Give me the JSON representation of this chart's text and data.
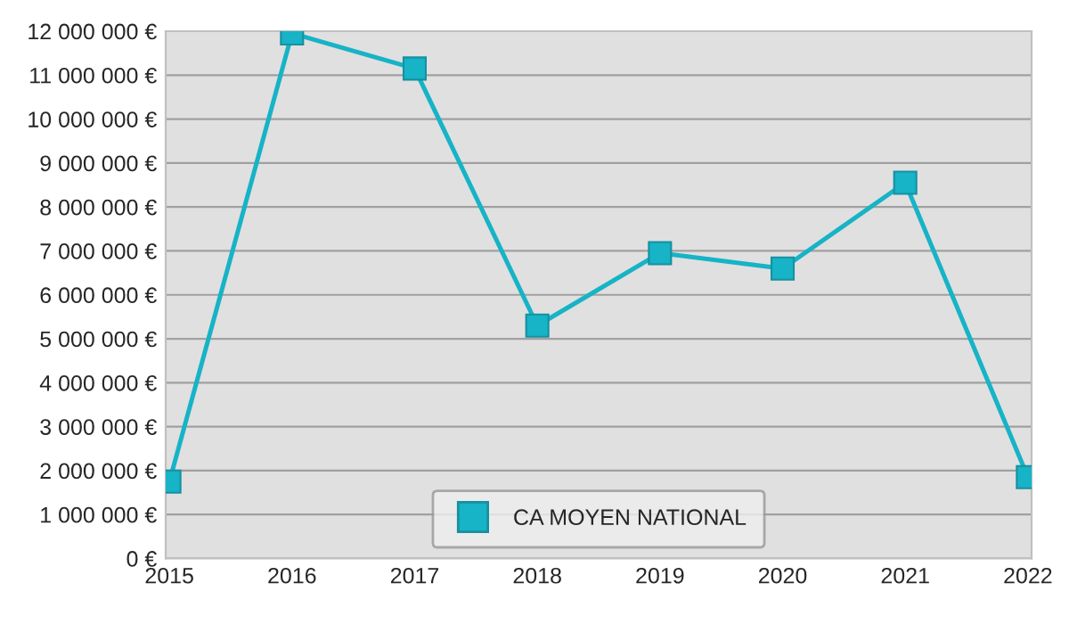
{
  "chart_data": {
    "type": "line",
    "categories": [
      "2015",
      "2016",
      "2017",
      "2018",
      "2019",
      "2020",
      "2021",
      "2022"
    ],
    "series": [
      {
        "name": "CA MOYEN NATIONAL",
        "color": "#17b3c6",
        "values": [
          1750000,
          11950000,
          11150000,
          5300000,
          6950000,
          6600000,
          8550000,
          1850000
        ]
      }
    ],
    "ylim": [
      0,
      12000000
    ],
    "yticks": [
      {
        "value": 0,
        "label": "0 €"
      },
      {
        "value": 1000000,
        "label": "1 000 000 €"
      },
      {
        "value": 2000000,
        "label": "2 000 000 €"
      },
      {
        "value": 3000000,
        "label": "3 000 000 €"
      },
      {
        "value": 4000000,
        "label": "4 000 000 €"
      },
      {
        "value": 5000000,
        "label": "5 000 000 €"
      },
      {
        "value": 6000000,
        "label": "6 000 000 €"
      },
      {
        "value": 7000000,
        "label": "7 000 000 €"
      },
      {
        "value": 8000000,
        "label": "8 000 000 €"
      },
      {
        "value": 9000000,
        "label": "9 000 000 €"
      },
      {
        "value": 10000000,
        "label": "10 000 000 €"
      },
      {
        "value": 11000000,
        "label": "11 000 000 €"
      },
      {
        "value": 12000000,
        "label": "12 000 000 €"
      }
    ],
    "grid": "y",
    "legend": "bottom",
    "marker": "square",
    "line_style": "solid"
  }
}
